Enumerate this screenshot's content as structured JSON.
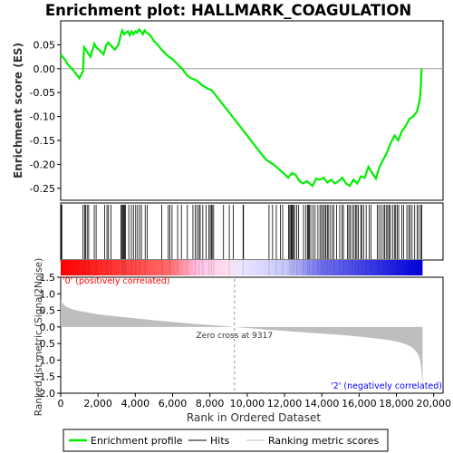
{
  "chart_data": {
    "type": "line",
    "title": "Enrichment plot: HALLMARK_COAGULATION",
    "panels": {
      "es": {
        "ylabel": "Enrichment score (ES)",
        "ylim": [
          -0.275,
          0.1
        ],
        "yticks": [
          -0.25,
          -0.2,
          -0.15,
          -0.1,
          -0.05,
          0.0,
          0.05
        ],
        "yticklabels": [
          "-0.25",
          "-0.20",
          "-0.15",
          "-0.10",
          "-0.05",
          "0.00",
          "0.05"
        ],
        "zero_line": true
      },
      "metric": {
        "ylabel": "Ranked list metric (Signal2Noise)",
        "ylim": [
          -2.0,
          1.5
        ],
        "yticks": [
          -2.0,
          -1.5,
          -1.0,
          -0.5,
          0.0,
          0.5,
          1.0,
          1.5
        ],
        "yticklabels": [
          "-2.0",
          "-1.5",
          "-1.0",
          "-0.5",
          "0.0",
          "0.5",
          "1.0",
          "1.5"
        ]
      }
    },
    "xlabel": "Rank in Ordered Dataset",
    "xlim": [
      0,
      20500
    ],
    "xticks": [
      0,
      2000,
      4000,
      6000,
      8000,
      10000,
      12000,
      14000,
      16000,
      18000,
      20000
    ],
    "xticklabels": [
      "0",
      "2,000",
      "4,000",
      "6,000",
      "8,000",
      "10,000",
      "12,000",
      "14,000",
      "16,000",
      "18,000",
      "20,000"
    ],
    "n_genes": 19400,
    "series": [
      {
        "name": "Enrichment profile",
        "color": "#00ee00",
        "x": [
          0,
          200,
          400,
          600,
          800,
          1000,
          1200,
          1250,
          1350,
          1500,
          1600,
          1800,
          1900,
          2100,
          2300,
          2450,
          2550,
          2700,
          2900,
          3100,
          3250,
          3300,
          3400,
          3600,
          3700,
          3800,
          3900,
          4000,
          4100,
          4200,
          4300,
          4400,
          4500,
          4600,
          4800,
          5000,
          5200,
          5400,
          5600,
          5800,
          6000,
          6200,
          6500,
          6800,
          7000,
          7300,
          7600,
          7900,
          8100,
          8400,
          9000,
          9500,
          10000,
          10500,
          11000,
          11400,
          11700,
          12000,
          12200,
          12400,
          12600,
          12800,
          13000,
          13200,
          13500,
          13700,
          13900,
          14100,
          14300,
          14500,
          14700,
          14900,
          15100,
          15300,
          15500,
          15700,
          15900,
          16100,
          16300,
          16500,
          16700,
          16900,
          17100,
          17300,
          17500,
          17700,
          17900,
          18100,
          18300,
          18500,
          18700,
          18900,
          19100,
          19250,
          19300,
          19330,
          19350
        ],
        "values": [
          0.03,
          0.02,
          0.008,
          0.0,
          -0.01,
          -0.02,
          -0.005,
          0.045,
          0.04,
          0.03,
          0.025,
          0.052,
          0.045,
          0.038,
          0.03,
          0.05,
          0.055,
          0.048,
          0.04,
          0.05,
          0.075,
          0.08,
          0.072,
          0.078,
          0.07,
          0.078,
          0.072,
          0.078,
          0.075,
          0.082,
          0.078,
          0.072,
          0.08,
          0.075,
          0.07,
          0.058,
          0.05,
          0.04,
          0.032,
          0.025,
          0.02,
          0.012,
          0.0,
          -0.015,
          -0.02,
          -0.025,
          -0.035,
          -0.042,
          -0.045,
          -0.06,
          -0.09,
          -0.115,
          -0.14,
          -0.165,
          -0.19,
          -0.2,
          -0.21,
          -0.22,
          -0.228,
          -0.218,
          -0.222,
          -0.235,
          -0.24,
          -0.235,
          -0.245,
          -0.23,
          -0.232,
          -0.228,
          -0.238,
          -0.232,
          -0.24,
          -0.235,
          -0.228,
          -0.24,
          -0.245,
          -0.232,
          -0.24,
          -0.225,
          -0.228,
          -0.205,
          -0.218,
          -0.23,
          -0.205,
          -0.19,
          -0.175,
          -0.155,
          -0.14,
          -0.15,
          -0.13,
          -0.12,
          -0.105,
          -0.1,
          -0.09,
          -0.065,
          -0.045,
          -0.02,
          0.0
        ]
      },
      {
        "name": "Hits",
        "color": "#000000",
        "x": [
          30,
          60,
          1200,
          1280,
          1330,
          1420,
          1500,
          1800,
          1900,
          2350,
          2480,
          2560,
          2700,
          3230,
          3290,
          3330,
          3380,
          3420,
          3470,
          3650,
          3790,
          3900,
          4020,
          4120,
          4230,
          4330,
          4530,
          4640,
          5420,
          5770,
          5850,
          5970,
          6270,
          6470,
          6790,
          7090,
          7220,
          7320,
          7420,
          7480,
          7620,
          7790,
          7950,
          8020,
          8090,
          8120,
          8200,
          8730,
          9040,
          9250,
          9780,
          9800,
          11170,
          11360,
          11560,
          11780,
          11900,
          12220,
          12280,
          12340,
          12380,
          12430,
          12480,
          12540,
          12650,
          12760,
          13020,
          13150,
          13240,
          13290,
          13330,
          13410,
          13530,
          13640,
          13790,
          13900,
          13980,
          14060,
          14140,
          14210,
          14290,
          14340,
          14440,
          14560,
          14640,
          14790,
          14960,
          15080,
          15160,
          15380,
          15450,
          15530,
          15640,
          15730,
          15820,
          15880,
          15960,
          16090,
          16140,
          16240,
          16380,
          16540,
          16640,
          16980,
          17060,
          17170,
          17290,
          17360,
          17450,
          17530,
          17600,
          17670,
          17790,
          17890,
          17960,
          18040,
          18120,
          18290,
          18380,
          18560,
          18660,
          18740,
          18840,
          18980,
          19120,
          19200,
          19320,
          19360
        ],
        "hit_height": 60
      },
      {
        "name": "Ranking metric scores",
        "color": "#bebebe",
        "x": [
          0,
          30,
          100,
          200,
          400,
          700,
          1000,
          1500,
          2000,
          3000,
          4000,
          5000,
          6000,
          7000,
          8000,
          9000,
          9317,
          10000,
          11000,
          12000,
          13000,
          14000,
          15000,
          16000,
          17000,
          17500,
          18000,
          18500,
          18800,
          19000,
          19150,
          19250,
          19300,
          19340,
          19380,
          19400
        ],
        "values": [
          0.82,
          0.8,
          0.72,
          0.65,
          0.58,
          0.52,
          0.48,
          0.43,
          0.38,
          0.32,
          0.26,
          0.2,
          0.15,
          0.1,
          0.06,
          0.02,
          0.0,
          -0.03,
          -0.08,
          -0.12,
          -0.16,
          -0.2,
          -0.24,
          -0.29,
          -0.35,
          -0.39,
          -0.44,
          -0.52,
          -0.6,
          -0.7,
          -0.82,
          -0.95,
          -1.1,
          -1.3,
          -1.6,
          -1.85
        ]
      }
    ],
    "gradient_bar": {
      "from_color": "#ff0000",
      "to_color": "#0000ff"
    },
    "annotations": {
      "zero_cross": {
        "x": 9317,
        "text": "Zero cross at 9317"
      },
      "pos_label": {
        "text": "'0' (positively correlated)",
        "color": "#ff0000"
      },
      "neg_label": {
        "text": "'2' (negatively correlated)",
        "color": "#0000ff"
      }
    },
    "legend": {
      "placement": "bottom",
      "items": [
        {
          "label": "Enrichment profile",
          "color": "#00ee00"
        },
        {
          "label": "Hits",
          "color": "#000000"
        },
        {
          "label": "Ranking metric scores",
          "color": "#bebebe"
        }
      ]
    }
  }
}
